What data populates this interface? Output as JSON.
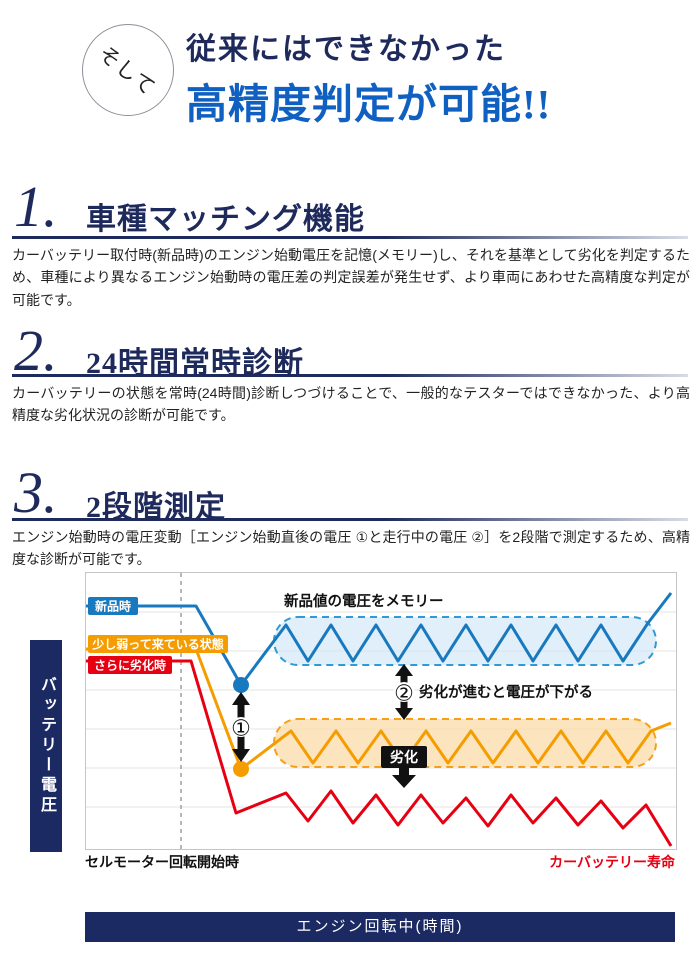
{
  "header": {
    "circle_label": "そして",
    "title_line1": "従来にはできなかった",
    "title_line2": "高精度判定が可能!!"
  },
  "sections": [
    {
      "number": "1.",
      "title": "車種マッチング機能",
      "body": "カーバッテリー取付時(新品時)のエンジン始動電圧を記憶(メモリー)し、それを基準として劣化を判定するため、車種により異なるエンジン始動時の電圧差の判定誤差が発生せず、より車両にあわせた高精度な判定が可能です。"
    },
    {
      "number": "2.",
      "title": "24時間常時診断",
      "body": "カーバッテリーの状態を常時(24時間)診断しつづけることで、一般的なテスターではできなかった、より高精度な劣化状況の診断が可能です。"
    },
    {
      "number": "3.",
      "title": "2段階測定",
      "body": "エンジン始動時の電圧変動［エンジン始動直後の電圧 ①と走行中の電圧 ②］を2段階で測定するため、高精度な診断が可能です。"
    }
  ],
  "chart": {
    "y_axis_label": "バッテリー電圧",
    "x_axis_label": "エンジン回転中(時間)",
    "x_start_label": "セルモーター回転開始時",
    "x_end_label": "カーバッテリー寿命",
    "memory_note": "新品値の電圧をメモリー",
    "degrade_note": "劣化が進むと電圧が下がる",
    "degrade_badge": "劣化",
    "marker1": "①",
    "marker2": "②"
  },
  "chart_data": {
    "type": "line",
    "xlabel": "エンジン回転中(時間)",
    "ylabel": "バッテリー電圧",
    "x_start_annotation": "セルモーター回転開始時",
    "x_end_annotation": "カーバッテリー寿命",
    "grid": true,
    "legend_position": "top-left",
    "coordinate_space": "svg pixels, 590x276, y increases downward (lower y = higher voltage)",
    "series": [
      {
        "id": "new",
        "name": "新品時",
        "color": "#1879be",
        "points": [
          [
            0,
            33
          ],
          [
            110,
            33
          ],
          [
            155,
            112
          ],
          [
            200,
            52
          ],
          [
            222,
            88
          ],
          [
            245,
            52
          ],
          [
            267,
            88
          ],
          [
            290,
            52
          ],
          [
            312,
            88
          ],
          [
            335,
            52
          ],
          [
            357,
            88
          ],
          [
            380,
            52
          ],
          [
            402,
            88
          ],
          [
            425,
            52
          ],
          [
            447,
            88
          ],
          [
            470,
            52
          ],
          [
            492,
            88
          ],
          [
            515,
            52
          ],
          [
            537,
            88
          ],
          [
            562,
            50
          ],
          [
            585,
            20
          ]
        ]
      },
      {
        "id": "weakening",
        "name": "少し弱って来ている状態",
        "color": "#f59d00",
        "points": [
          [
            0,
            76
          ],
          [
            110,
            76
          ],
          [
            155,
            196
          ],
          [
            205,
            158
          ],
          [
            227,
            190
          ],
          [
            250,
            158
          ],
          [
            272,
            190
          ],
          [
            295,
            158
          ],
          [
            317,
            190
          ],
          [
            340,
            158
          ],
          [
            362,
            190
          ],
          [
            385,
            158
          ],
          [
            407,
            190
          ],
          [
            430,
            158
          ],
          [
            452,
            190
          ],
          [
            475,
            158
          ],
          [
            497,
            190
          ],
          [
            520,
            158
          ],
          [
            542,
            190
          ],
          [
            565,
            158
          ],
          [
            585,
            150
          ]
        ]
      },
      {
        "id": "degraded",
        "name": "さらに劣化時",
        "color": "#e60012",
        "points": [
          [
            0,
            88
          ],
          [
            105,
            88
          ],
          [
            150,
            240
          ],
          [
            200,
            220
          ],
          [
            222,
            248
          ],
          [
            245,
            218
          ],
          [
            267,
            250
          ],
          [
            290,
            222
          ],
          [
            312,
            252
          ],
          [
            335,
            222
          ],
          [
            357,
            250
          ],
          [
            380,
            225
          ],
          [
            402,
            253
          ],
          [
            425,
            222
          ],
          [
            447,
            250
          ],
          [
            470,
            225
          ],
          [
            492,
            252
          ],
          [
            515,
            228
          ],
          [
            537,
            255
          ],
          [
            560,
            232
          ],
          [
            585,
            273
          ]
        ]
      }
    ],
    "markers": [
      {
        "id": "dot-start-voltage-new",
        "x": 155,
        "y": 112,
        "color": "#1879be"
      },
      {
        "id": "dot-start-voltage-degraded",
        "x": 155,
        "y": 196,
        "color": "#f59d00"
      }
    ]
  }
}
